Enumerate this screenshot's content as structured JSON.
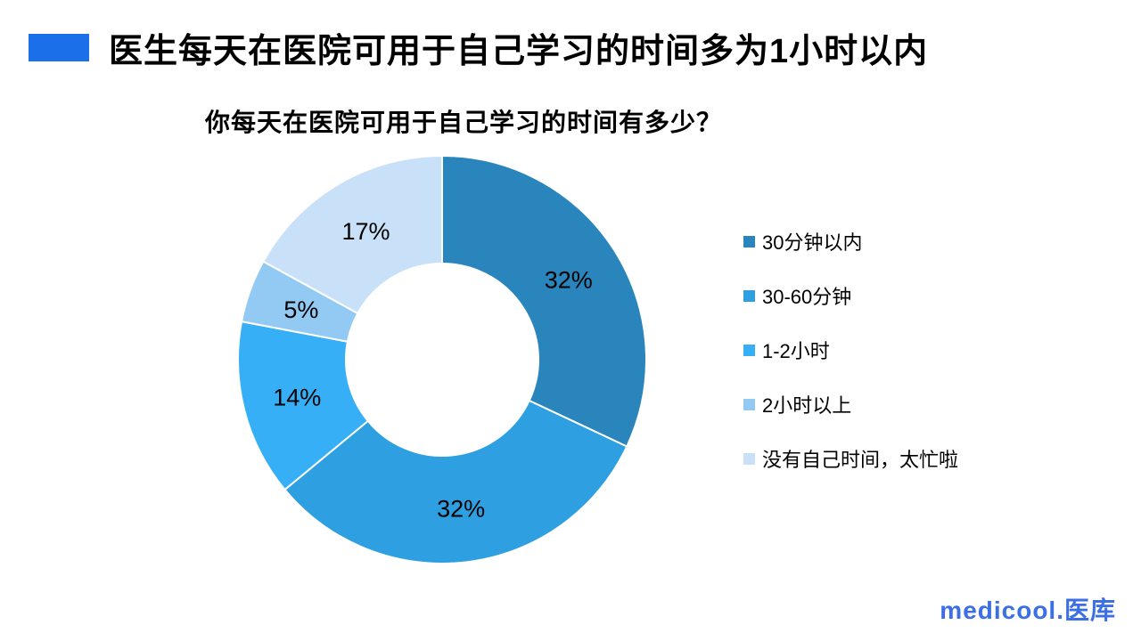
{
  "page": {
    "title": "医生每天在医院可用于自己学习的时间多为1小时以内",
    "accent_color": "#1B6FE8",
    "background_color": "#FFFFFF"
  },
  "chart_data": {
    "type": "pie",
    "subtype": "donut",
    "title": "你每天在医院可用于自己学习的时间有多少？",
    "categories": [
      "30分钟以内",
      "30-60分钟",
      "1-2小时",
      "2小时以上",
      "没有自己时间，太忙啦"
    ],
    "values": [
      32,
      32,
      14,
      5,
      17
    ],
    "labels": [
      "32%",
      "32%",
      "14%",
      "5%",
      "17%"
    ],
    "colors": [
      "#2A85BC",
      "#2E9FE0",
      "#36AFF7",
      "#93CAF4",
      "#C8E0F8"
    ],
    "start_angle_deg": 0,
    "direction": "clockwise",
    "donut_hole_ratio": 0.47,
    "slice_border_color": "#FFFFFF",
    "label_color": "#000000",
    "legend_position": "right"
  },
  "brand": {
    "logo_text": "medicool.医库",
    "logo_color": "#3B6FE3"
  }
}
